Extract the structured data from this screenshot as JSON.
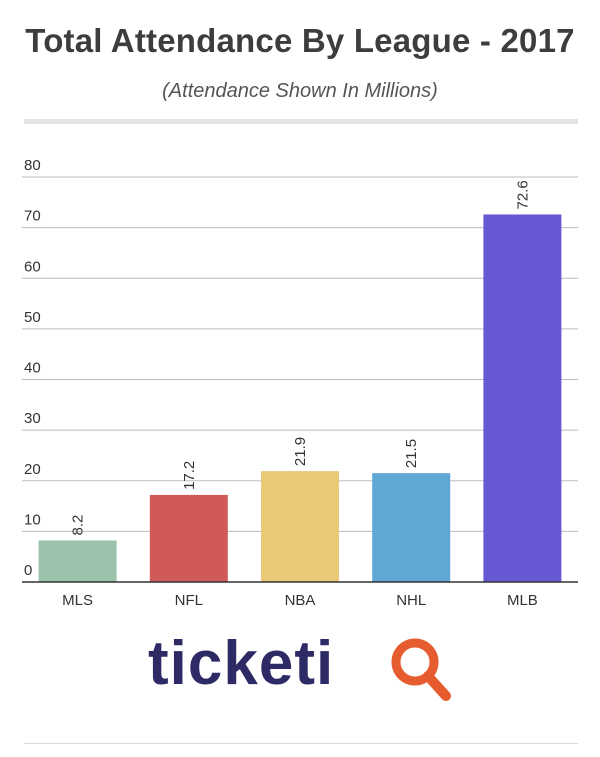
{
  "header": {
    "title": "Total Attendance By League - 2017",
    "subtitle": "(Attendance Shown In Millions)"
  },
  "logo": {
    "text": "ticketiQ",
    "primary_color": "#2d2a66",
    "accent_color": "#e65c2e"
  },
  "chart_data": {
    "type": "bar",
    "categories": [
      "MLS",
      "NFL",
      "NBA",
      "NHL",
      "MLB"
    ],
    "values": [
      8.2,
      17.2,
      21.9,
      21.5,
      72.6
    ],
    "labels": [
      "8.2",
      "17.2",
      "21.9",
      "21.5",
      "72.6"
    ],
    "colors": [
      "#9bc3ab",
      "#cf5a58",
      "#e9c977",
      "#5fa7d4",
      "#6758d4"
    ],
    "ylim": [
      0,
      80
    ],
    "yticks": [
      0,
      10,
      20,
      30,
      40,
      50,
      60,
      70,
      80
    ],
    "grid": true,
    "legend": "none"
  }
}
